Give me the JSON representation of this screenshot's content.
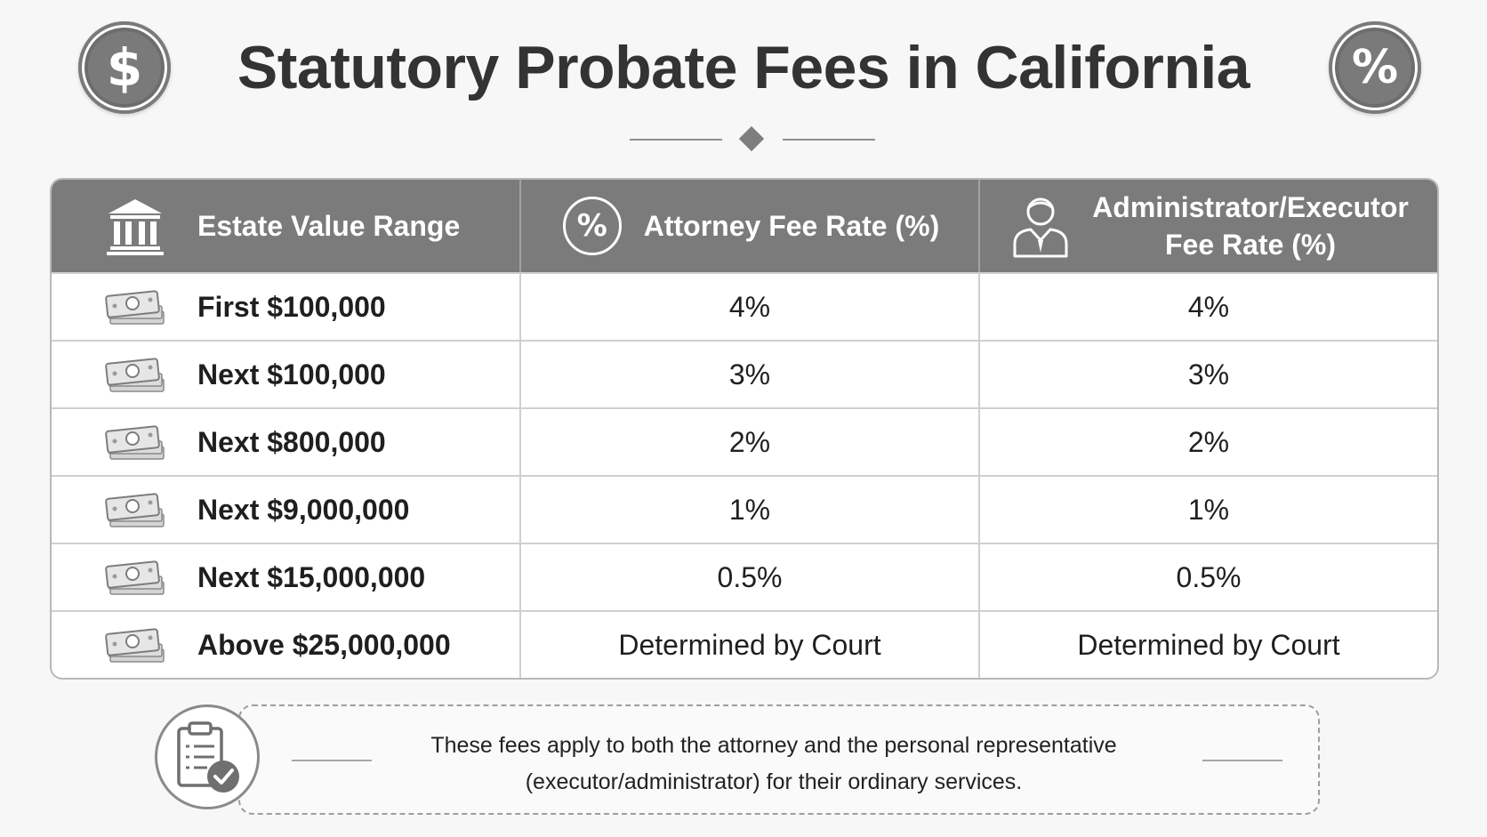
{
  "header": {
    "title": "Statutory Probate Fees in California",
    "left_badge_icon": "dollar-sign-icon",
    "left_badge_glyph": "$",
    "right_badge_icon": "percent-icon",
    "right_badge_glyph": "%"
  },
  "table": {
    "columns": [
      {
        "label": "Estate Value Range",
        "icon": "bank-building-icon"
      },
      {
        "label": "Attorney Fee Rate (%)",
        "icon": "percent-circle-icon",
        "icon_glyph": "%"
      },
      {
        "label_line1": "Administrator/Executor",
        "label_line2": "Fee Rate (%)",
        "icon": "person-icon"
      }
    ],
    "rows": [
      {
        "range": "First $100,000",
        "attorney": "4%",
        "executor": "4%"
      },
      {
        "range": "Next $100,000",
        "attorney": "3%",
        "executor": "3%"
      },
      {
        "range": "Next $800,000",
        "attorney": "2%",
        "executor": "2%"
      },
      {
        "range": "Next $9,000,000",
        "attorney": "1%",
        "executor": "1%"
      },
      {
        "range": "Next $15,000,000",
        "attorney": "0.5%",
        "executor": "0.5%"
      },
      {
        "range": "Above $25,000,000",
        "attorney": "Determined by Court",
        "executor": "Determined by Court"
      }
    ],
    "row_icon": "money-stack-icon"
  },
  "note": {
    "icon": "clipboard-check-icon",
    "line1": "These fees apply to both the attorney and the personal representative",
    "line2": "(executor/administrator) for their ordinary services."
  },
  "colors": {
    "background": "#f7f7f7",
    "header_fill": "#7b7b7b",
    "title_text": "#333333",
    "border": "#cfcfcf"
  }
}
